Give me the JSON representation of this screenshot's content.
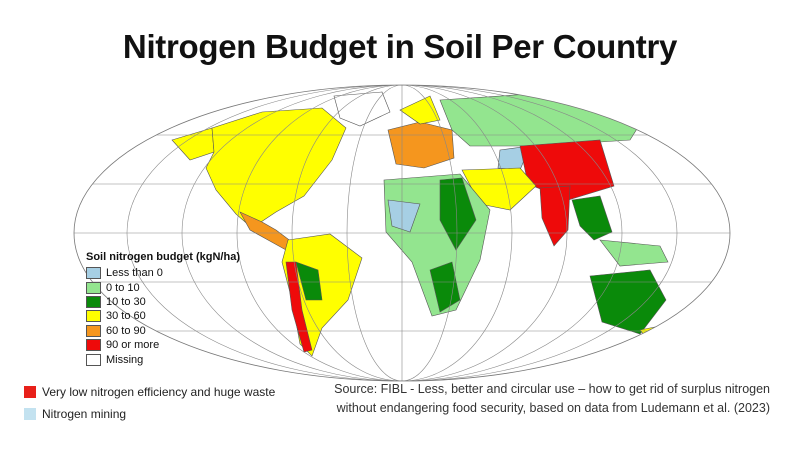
{
  "title": "Nitrogen Budget in Soil Per Country",
  "legend": {
    "title": "Soil nitrogen budget (kgN/ha)",
    "items": [
      {
        "label": "Less than 0",
        "color": "#a6cfe4"
      },
      {
        "label": "0 to 10",
        "color": "#93e58f"
      },
      {
        "label": "10 to 30",
        "color": "#0a8a0a"
      },
      {
        "label": "30 to 60",
        "color": "#ffff00"
      },
      {
        "label": "60 to 90",
        "color": "#f5961e"
      },
      {
        "label": "90 or more",
        "color": "#ee0a0a"
      },
      {
        "label": "Missing",
        "color": "#ffffff"
      }
    ]
  },
  "notes": [
    {
      "label": "Very low nitrogen efficiency and huge waste",
      "color": "#e8201a"
    },
    {
      "label": "Nitrogen mining",
      "color": "#c3e2f0"
    }
  ],
  "source": "Source: FIBL - Less, better and circular use – how to get rid of surplus nitrogen without endangering food security, based on data from Ludemann et al. (2023)"
}
